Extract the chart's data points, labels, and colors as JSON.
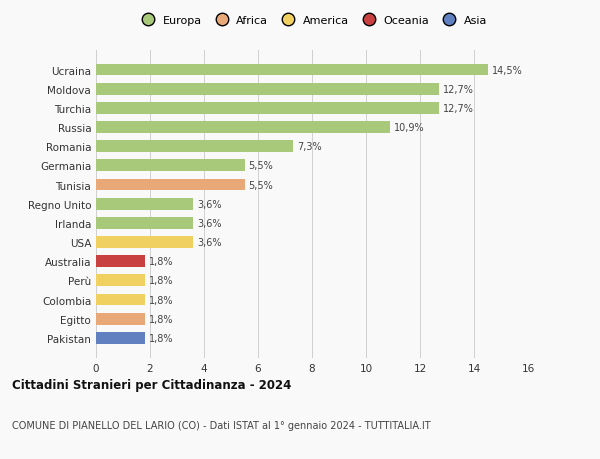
{
  "countries": [
    "Ucraina",
    "Moldova",
    "Turchia",
    "Russia",
    "Romania",
    "Germania",
    "Tunisia",
    "Regno Unito",
    "Irlanda",
    "USA",
    "Australia",
    "Perù",
    "Colombia",
    "Egitto",
    "Pakistan"
  ],
  "values": [
    14.5,
    12.7,
    12.7,
    10.9,
    7.3,
    5.5,
    5.5,
    3.6,
    3.6,
    3.6,
    1.8,
    1.8,
    1.8,
    1.8,
    1.8
  ],
  "labels": [
    "14,5%",
    "12,7%",
    "12,7%",
    "10,9%",
    "7,3%",
    "5,5%",
    "5,5%",
    "3,6%",
    "3,6%",
    "3,6%",
    "1,8%",
    "1,8%",
    "1,8%",
    "1,8%",
    "1,8%"
  ],
  "colors": [
    "#a8c87a",
    "#a8c87a",
    "#a8c87a",
    "#a8c87a",
    "#a8c87a",
    "#a8c87a",
    "#e8a878",
    "#a8c87a",
    "#a8c87a",
    "#f0d060",
    "#c84040",
    "#f0d060",
    "#f0d060",
    "#e8a878",
    "#6080c0"
  ],
  "legend_labels": [
    "Europa",
    "Africa",
    "America",
    "Oceania",
    "Asia"
  ],
  "legend_colors": [
    "#a8c87a",
    "#e8a878",
    "#f0d060",
    "#c84040",
    "#6080c0"
  ],
  "title1": "Cittadini Stranieri per Cittadinanza - 2024",
  "title2": "COMUNE DI PIANELLO DEL LARIO (CO) - Dati ISTAT al 1° gennaio 2024 - TUTTITALIA.IT",
  "xlim": [
    0,
    16
  ],
  "xticks": [
    0,
    2,
    4,
    6,
    8,
    10,
    12,
    14,
    16
  ],
  "bg_color": "#f9f9f9",
  "grid_color": "#d0d0d0",
  "bar_height": 0.62
}
